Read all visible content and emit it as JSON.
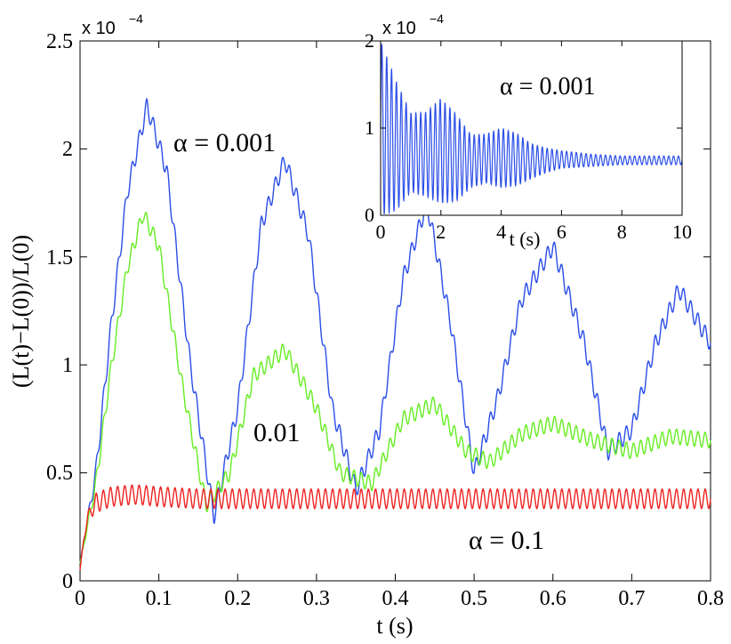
{
  "chart_data": [
    {
      "type": "line",
      "xlabel": "t (s)",
      "ylabel": "(L(t)−L(0))/L(0)",
      "xlim": [
        0,
        0.8
      ],
      "ylim": [
        0,
        2.5
      ],
      "y_multiplier": "x 10",
      "y_multiplier_exp": "−4",
      "x_ticks": [
        "0",
        "0.1",
        "0.2",
        "0.3",
        "0.4",
        "0.5",
        "0.6",
        "0.7",
        "0.8"
      ],
      "y_ticks": [
        "0",
        "0.5",
        "1",
        "1.5",
        "2",
        "2.5"
      ],
      "grid": false,
      "annotations": [
        "α = 0.001",
        "0.01",
        "α = 0.1"
      ],
      "series": [
        {
          "alpha": 0.001,
          "color": "#2b4ee8",
          "x": [
            0,
            0.02,
            0.04,
            0.06,
            0.085,
            0.11,
            0.14,
            0.17,
            0.2,
            0.23,
            0.26,
            0.29,
            0.32,
            0.35,
            0.38,
            0.41,
            0.44,
            0.47,
            0.5,
            0.53,
            0.56,
            0.6,
            0.64,
            0.67,
            0.7,
            0.73,
            0.76,
            0.8
          ],
          "y": [
            0.08,
            0.5,
            1.2,
            1.8,
            2.2,
            1.9,
            1.0,
            0.3,
            0.8,
            1.65,
            1.95,
            1.6,
            0.8,
            0.42,
            0.7,
            1.4,
            1.75,
            1.2,
            0.5,
            0.85,
            1.3,
            1.55,
            1.1,
            0.6,
            0.7,
            1.1,
            1.35,
            1.1
          ]
        },
        {
          "alpha": 0.01,
          "color": "#66ee22",
          "x": [
            0,
            0.02,
            0.04,
            0.06,
            0.08,
            0.1,
            0.13,
            0.16,
            0.19,
            0.22,
            0.26,
            0.3,
            0.33,
            0.37,
            0.41,
            0.45,
            0.49,
            0.52,
            0.56,
            0.6,
            0.65,
            0.7,
            0.75,
            0.8
          ],
          "y": [
            0.08,
            0.45,
            1.0,
            1.45,
            1.7,
            1.55,
            0.9,
            0.35,
            0.5,
            0.95,
            1.07,
            0.8,
            0.5,
            0.45,
            0.75,
            0.82,
            0.6,
            0.55,
            0.68,
            0.73,
            0.65,
            0.6,
            0.67,
            0.65
          ]
        },
        {
          "alpha": 0.1,
          "color": "#ee2222",
          "x": [
            0,
            0.005,
            0.01,
            0.02,
            0.04,
            0.07,
            0.1,
            0.15,
            0.2,
            0.3,
            0.4,
            0.5,
            0.6,
            0.7,
            0.8
          ],
          "y": [
            0.05,
            0.2,
            0.3,
            0.36,
            0.39,
            0.4,
            0.39,
            0.38,
            0.38,
            0.38,
            0.38,
            0.38,
            0.38,
            0.38,
            0.38
          ]
        }
      ]
    },
    {
      "type": "line",
      "xlabel": "t (s)",
      "xlim": [
        0,
        10
      ],
      "ylim": [
        0,
        2
      ],
      "y_multiplier": "x 10",
      "y_multiplier_exp": "−4",
      "x_ticks": [
        "0",
        "2",
        "4",
        "6",
        "8",
        "10"
      ],
      "y_ticks": [
        "0",
        "1",
        "2"
      ],
      "annotations": [
        "α = 0.001"
      ],
      "series": [
        {
          "alpha": 0.001,
          "color": "#2b4ee8",
          "x": [
            0,
            0.5,
            1,
            1.5,
            2,
            2.5,
            3,
            3.5,
            4,
            4.5,
            5,
            5.5,
            6,
            7,
            8,
            9,
            10
          ],
          "y": [
            1.0,
            0.8,
            0.72,
            0.7,
            0.74,
            0.66,
            0.62,
            0.65,
            0.66,
            0.64,
            0.62,
            0.63,
            0.64,
            0.63,
            0.63,
            0.63,
            0.63
          ],
          "envelope": [
            1.0,
            0.75,
            0.45,
            0.48,
            0.6,
            0.5,
            0.3,
            0.28,
            0.34,
            0.3,
            0.2,
            0.14,
            0.1,
            0.07,
            0.05,
            0.05,
            0.05
          ]
        }
      ]
    }
  ]
}
